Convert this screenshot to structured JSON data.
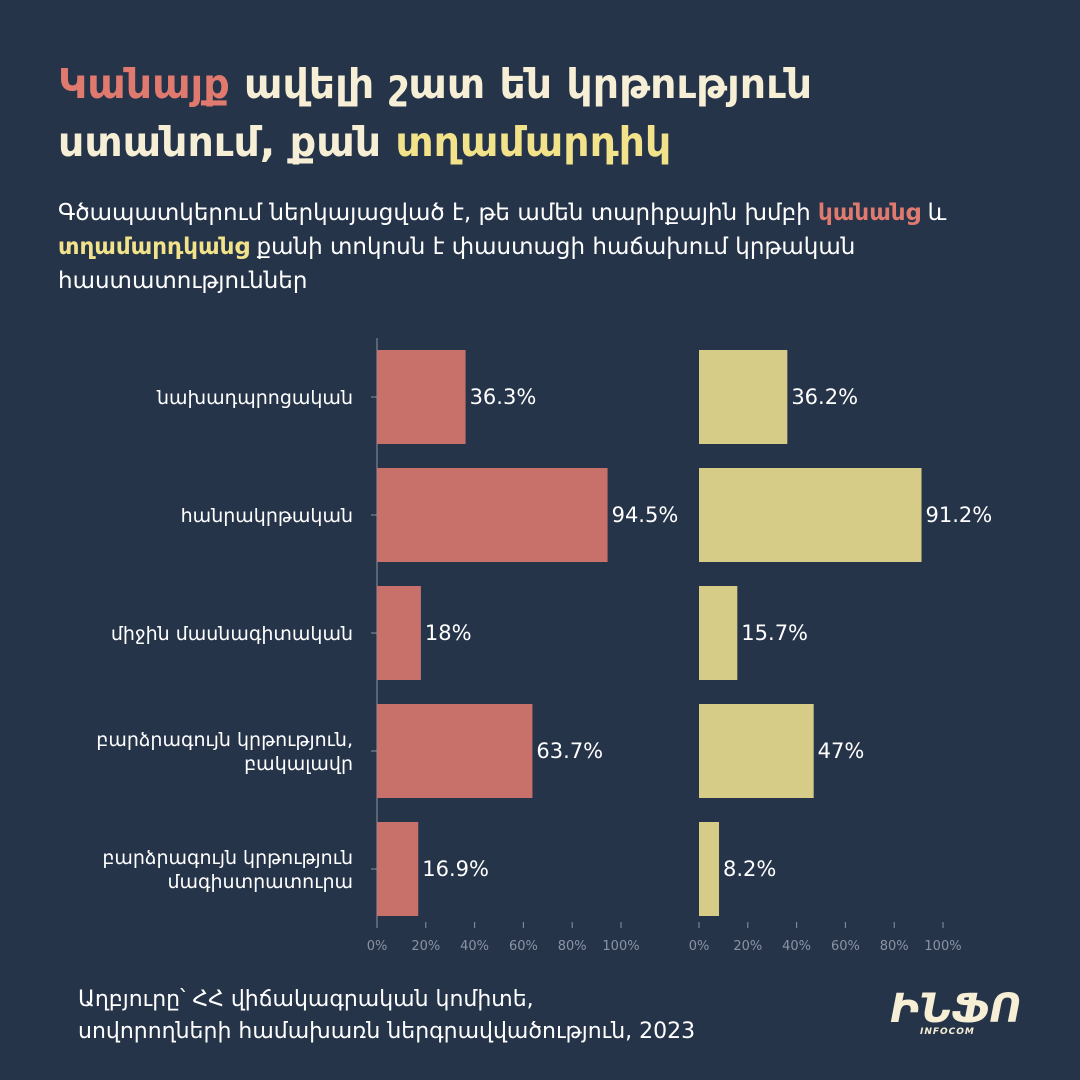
{
  "title": {
    "part1": "Կանայք",
    "part2": " ավելի շատ են կրթություն ստանում, քան ",
    "part3": "տղամարդիկ"
  },
  "subtitle": {
    "part1": "Գծապատկերում ներկայացված է, թե ամեն տարիքային խմբի ",
    "part2": "կանանց",
    "part3": " և ",
    "part4": "տղամարդկանց",
    "part5": " քանի տոկոսն է փաստացի հաճախում կրթական հաստատություններ"
  },
  "chart_data": {
    "type": "bar",
    "orientation": "horizontal",
    "categories": [
      [
        "նախադպրոցական"
      ],
      [
        "հանրակրթական"
      ],
      [
        "միջին մասնագիտական"
      ],
      [
        "բարձրագույն կրթություն,",
        "բակալավր"
      ],
      [
        "բարձրագույն կրթություն",
        "մագիստրատուրա"
      ]
    ],
    "series": [
      {
        "values": [
          36.3,
          94.5,
          18,
          63.7,
          16.9
        ],
        "labels": [
          "36.3%",
          "94.5%",
          "18%",
          "63.7%",
          "16.9%"
        ],
        "color": "#c8706a"
      },
      {
        "values": [
          36.2,
          91.2,
          15.7,
          47,
          8.2
        ],
        "labels": [
          "36.2%",
          "91.2%",
          "15.7%",
          "47%",
          "8.2%"
        ],
        "color": "#d6cb87"
      }
    ],
    "xlim": [
      0,
      100
    ],
    "xticks": [
      "0%",
      "20%",
      "40%",
      "60%",
      "80%",
      "100%"
    ],
    "grid": false,
    "legend": "none"
  },
  "source": {
    "line1": "Աղբյուրը՝ ՀՀ վիճակագրական կոմիտե,",
    "line2": "սովորողների համախառն ներգրավվածություն, 2023"
  },
  "logo": {
    "glyphs": "ԻՆՖՈ",
    "sub": "INFOCOM"
  },
  "colors": {
    "background": "#26344a",
    "women": "#c8706a",
    "men": "#d6cb87",
    "title_accent_women": "#e07a6e",
    "title_accent_men": "#f2e28a",
    "axis": "#8a93a3"
  }
}
